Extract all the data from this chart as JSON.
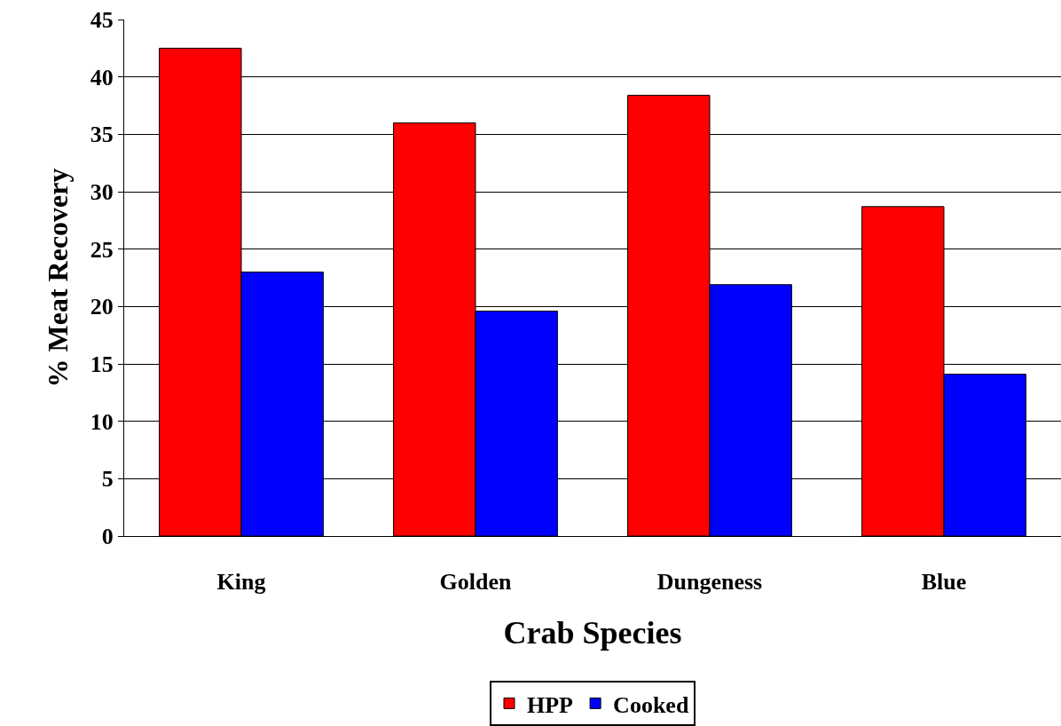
{
  "chart_data": {
    "type": "bar",
    "xlabel": "Crab Species",
    "ylabel": "% Meat Recovery",
    "categories": [
      "King",
      "Golden",
      "Dungeness",
      "Blue"
    ],
    "series": [
      {
        "name": "HPP",
        "color": "#ff0000",
        "values": [
          42.5,
          36.0,
          38.4,
          28.7
        ]
      },
      {
        "name": "Cooked",
        "color": "#0000ff",
        "values": [
          23.0,
          19.6,
          21.9,
          14.1
        ]
      }
    ],
    "ylim": [
      0,
      45
    ],
    "yticks": [
      0,
      5,
      10,
      15,
      20,
      25,
      30,
      35,
      40,
      45
    ],
    "grid": "y",
    "legend": "bottom"
  }
}
